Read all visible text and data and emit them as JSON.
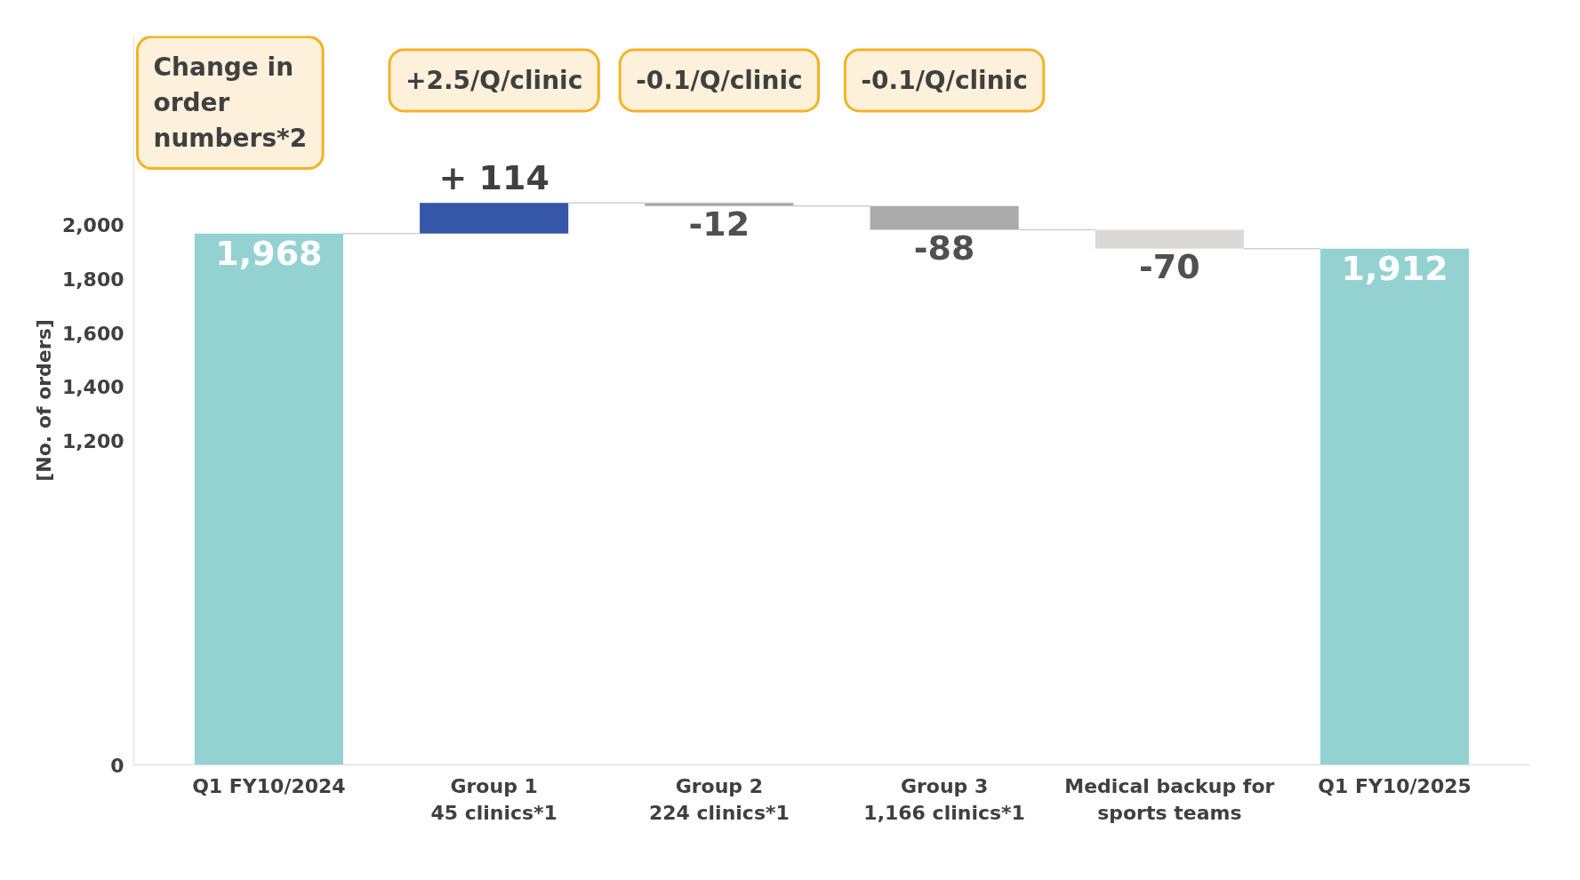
{
  "chart_data": {
    "type": "bar",
    "ylabel": "[No. of orders]",
    "categories": [
      "Q1 FY10/2024",
      "Group 1\n45 clinics*1",
      "Group 2\n224 clinics*1",
      "Group 3\n1,166 clinics*1",
      "Medical backup for\nsports teams",
      "Q1 FY10/2025"
    ],
    "values": [
      1968,
      114,
      -12,
      -88,
      -70,
      1912
    ],
    "base": [
      0,
      1968,
      2082,
      2070,
      1982,
      0
    ],
    "colors": [
      "#94d2d2",
      "#3657a7",
      "#a9a9a9",
      "#ababab",
      "#dcd8d8",
      "#94d2d2"
    ],
    "value_labels": [
      "1,968",
      "+ 114",
      "-12",
      "-88",
      "-70",
      "1,912"
    ],
    "ylim": [
      0,
      2700
    ],
    "yticks": [
      0,
      {
        "value": 1200,
        "label": "1,200"
      },
      {
        "value": 1400,
        "label": "1,400"
      },
      {
        "value": 1600,
        "label": "1,600"
      },
      {
        "value": 1800,
        "label": "1,800"
      },
      {
        "value": 2000,
        "label": "2,000"
      }
    ],
    "annotations": [
      "Change in order numbers*2",
      "+2.5/Q/clinic",
      "-0.1/Q/clinic",
      "-0.1/Q/clinic"
    ],
    "grid": false,
    "legend": false
  }
}
